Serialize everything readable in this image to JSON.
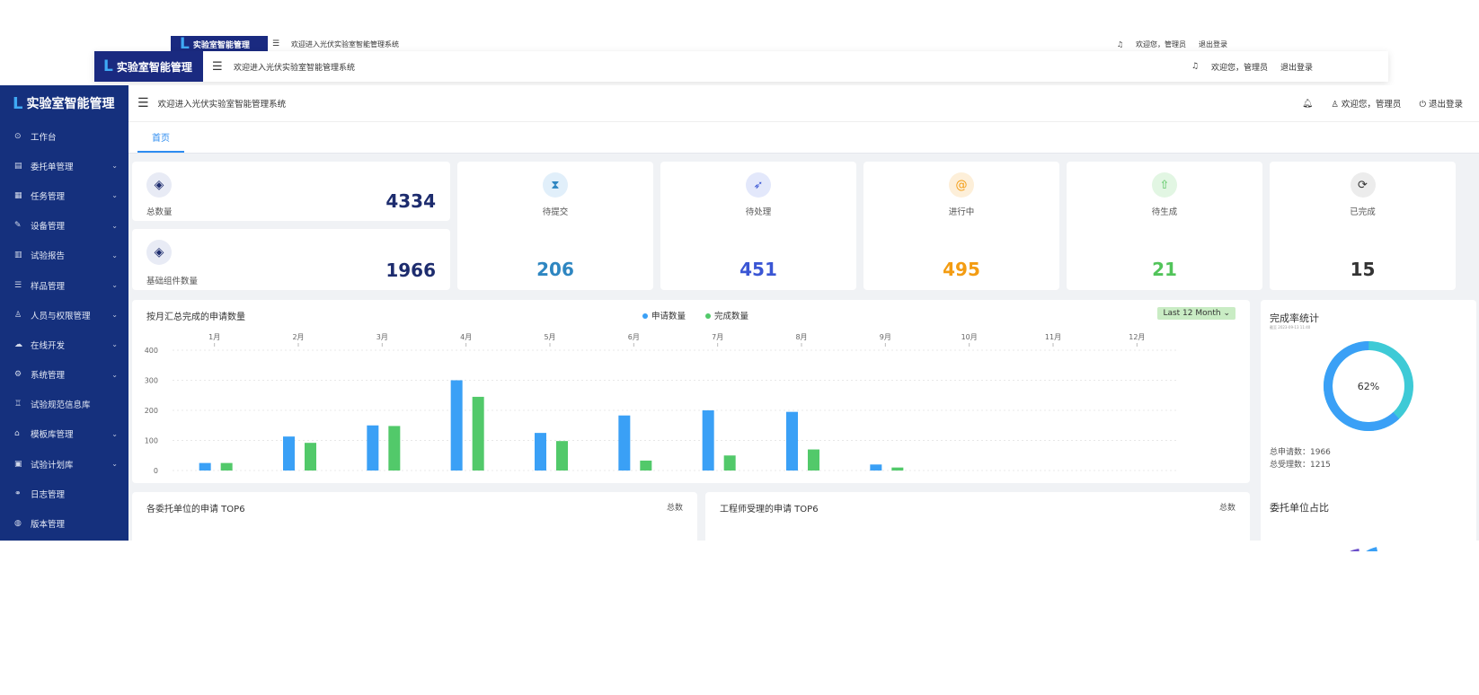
{
  "ghost_back": {
    "logo": "实验室智能管理",
    "welcome": "欢迎进入光伏实验室智能管理系统",
    "user": "欢迎您，管理员",
    "logout": "退出登录"
  },
  "ghost_mid": {
    "logo": "实验室智能管理",
    "welcome": "欢迎进入光伏实验室智能管理系统",
    "user": "欢迎您，管理员",
    "logout": "退出登录"
  },
  "app": {
    "logo": "实验室智能管理"
  },
  "header": {
    "welcome": "欢迎进入光伏实验室智能管理系统",
    "user": "欢迎您，管理员",
    "logout": "退出登录"
  },
  "tabs": [
    {
      "label": "首页"
    }
  ],
  "sidebar": {
    "items": [
      {
        "label": "工作台",
        "icon": "clock-icon",
        "glyph": "⊙",
        "has_children": false
      },
      {
        "label": "委托单管理",
        "icon": "document-icon",
        "glyph": "▤",
        "has_children": true
      },
      {
        "label": "任务管理",
        "icon": "grid-icon",
        "glyph": "▦",
        "has_children": true
      },
      {
        "label": "设备管理",
        "icon": "wrench-icon",
        "glyph": "✎",
        "has_children": true
      },
      {
        "label": "试验报告",
        "icon": "report-icon",
        "glyph": "▥",
        "has_children": true
      },
      {
        "label": "样品管理",
        "icon": "list-icon",
        "glyph": "☰",
        "has_children": true
      },
      {
        "label": "人员与权限管理",
        "icon": "user-icon",
        "glyph": "♙",
        "has_children": true
      },
      {
        "label": "在线开发",
        "icon": "cloud-icon",
        "glyph": "☁",
        "has_children": true
      },
      {
        "label": "系统管理",
        "icon": "gear-icon",
        "glyph": "⚙",
        "has_children": true
      },
      {
        "label": "试验规范信息库",
        "icon": "tree-icon",
        "glyph": "♖",
        "has_children": false
      },
      {
        "label": "模板库管理",
        "icon": "bank-icon",
        "glyph": "⌂",
        "has_children": true
      },
      {
        "label": "试验计划库",
        "icon": "calendar-icon",
        "glyph": "▣",
        "has_children": true
      },
      {
        "label": "日志管理",
        "icon": "link-icon",
        "glyph": "⚭",
        "has_children": false
      },
      {
        "label": "版本管理",
        "icon": "version-icon",
        "glyph": "◍",
        "has_children": false
      }
    ]
  },
  "stats": {
    "total": {
      "label": "总数量",
      "value": "4334"
    },
    "base": {
      "label": "基础组件数量",
      "value": "1966"
    },
    "cards": [
      {
        "label": "待提交",
        "value": "206",
        "color": "#2e86c1",
        "bg": "#e1effa",
        "icon": "hourglass-icon",
        "glyph": "⧗"
      },
      {
        "label": "待处理",
        "value": "451",
        "color": "#3a56d4",
        "bg": "#e3e8fb",
        "icon": "send-icon",
        "glyph": "➶"
      },
      {
        "label": "进行中",
        "value": "495",
        "color": "#f39c12",
        "bg": "#fdefd9",
        "icon": "at-icon",
        "glyph": "@"
      },
      {
        "label": "待生成",
        "value": "21",
        "color": "#52c45a",
        "bg": "#e2f6e3",
        "icon": "upload-icon",
        "glyph": "⇧"
      },
      {
        "label": "已完成",
        "value": "15",
        "color": "#333333",
        "bg": "#ececec",
        "icon": "refresh-icon",
        "glyph": "⟳"
      }
    ]
  },
  "monthly_chart": {
    "title": "按月汇总完成的申请数量",
    "period": "Last 12 Month"
  },
  "chart_data": {
    "type": "bar",
    "categories": [
      "1月",
      "2月",
      "3月",
      "4月",
      "5月",
      "6月",
      "7月",
      "8月",
      "9月",
      "10月",
      "11月",
      "12月"
    ],
    "series": [
      {
        "name": "申请数量",
        "color": "#3aa0f6",
        "values": [
          25,
          113,
          150,
          300,
          125,
          183,
          200,
          195,
          20,
          0,
          0,
          0
        ]
      },
      {
        "name": "完成数量",
        "color": "#52c96a",
        "values": [
          25,
          92,
          148,
          245,
          98,
          33,
          50,
          70,
          10,
          0,
          0,
          0
        ]
      }
    ],
    "yticks": [
      0,
      100,
      200,
      300,
      400
    ],
    "ylim": [
      0,
      400
    ],
    "grid": true,
    "legend": "top-center"
  },
  "completion": {
    "title": "完成率统计",
    "subtitle": "截至 2023-09-13 11:40",
    "percent": 62,
    "percent_label": "62%",
    "applied_label": "总申请数：1966",
    "accepted_label": "总受理数：1215",
    "colors": {
      "main": "#3aa0f6",
      "rest": "#3ecad6"
    }
  },
  "top6_units": {
    "title": "各委托单位的申请 TOP6",
    "col": "总数"
  },
  "top6_engineers": {
    "title": "工程师受理的申请 TOP6",
    "col": "总数"
  },
  "unit_share": {
    "title": "委托单位占比"
  }
}
